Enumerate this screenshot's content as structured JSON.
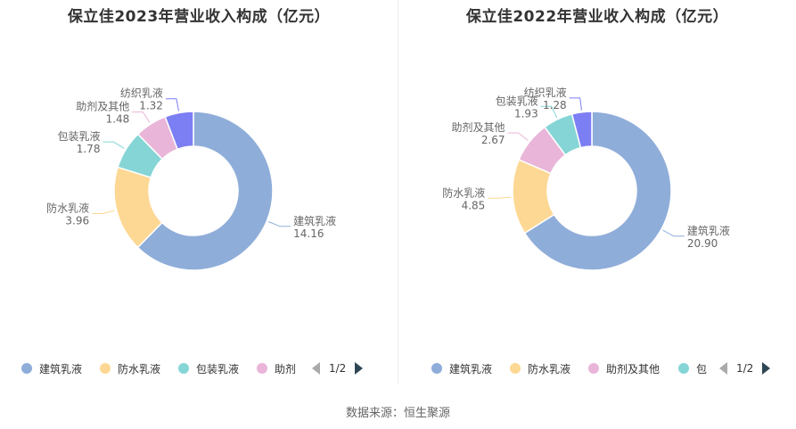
{
  "colors": {
    "建筑乳液": "#8fadd9",
    "防水乳液": "#fdd894",
    "包装乳液": "#86d5d6",
    "助剂及其他": "#e9b5d8",
    "纺织乳液": "#7c7ef4"
  },
  "chart_data": [
    {
      "type": "pie",
      "title": "保立佳2023年营业收入构成（亿元）",
      "series": [
        {
          "name": "建筑乳液",
          "value": 14.16,
          "label": "14.16"
        },
        {
          "name": "防水乳液",
          "value": 3.96,
          "label": "3.96"
        },
        {
          "name": "包装乳液",
          "value": 1.78,
          "label": "1.78"
        },
        {
          "name": "助剂及其他",
          "value": 1.48,
          "label": "1.48"
        },
        {
          "name": "纺织乳液",
          "value": 1.32,
          "label": "1.32"
        }
      ],
      "legend": {
        "position": "bottom",
        "items": [
          "建筑乳液",
          "防水乳液",
          "包装乳液",
          "助剂"
        ],
        "page": "1/2"
      }
    },
    {
      "type": "pie",
      "title": "保立佳2022年营业收入构成（亿元）",
      "series": [
        {
          "name": "建筑乳液",
          "value": 20.9,
          "label": "20.90"
        },
        {
          "name": "防水乳液",
          "value": 4.85,
          "label": "4.85"
        },
        {
          "name": "助剂及其他",
          "value": 2.67,
          "label": "2.67"
        },
        {
          "name": "包装乳液",
          "value": 1.93,
          "label": "1.93"
        },
        {
          "name": "纺织乳液",
          "value": 1.28,
          "label": "1.28"
        }
      ],
      "legend": {
        "position": "bottom",
        "items": [
          "建筑乳液",
          "防水乳液",
          "助剂及其他",
          "包"
        ],
        "page": "1/2"
      }
    }
  ],
  "footer": {
    "source": "数据来源：恒生聚源"
  }
}
